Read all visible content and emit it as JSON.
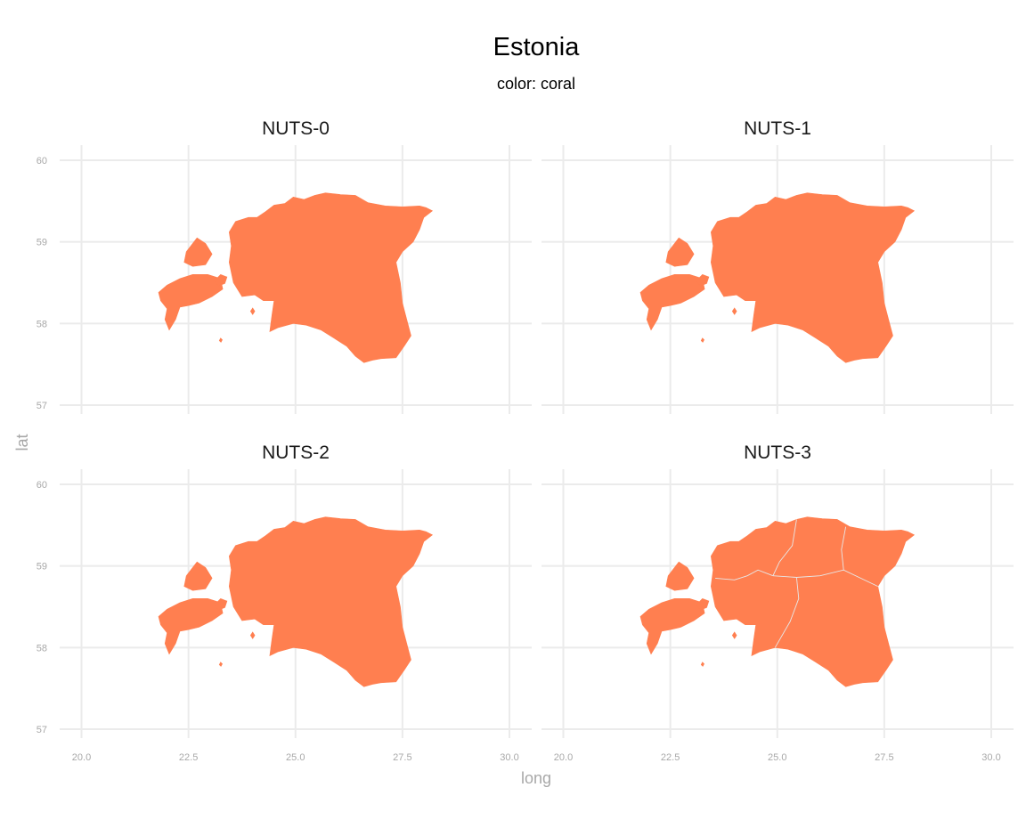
{
  "title": "Estonia",
  "subtitle": "color: coral",
  "fill_color": "#ff7f50",
  "border_color": "#e8e8e8",
  "x_axis": {
    "label": "long",
    "ticks": [
      "20.0",
      "22.5",
      "25.0",
      "27.5",
      "30.0"
    ]
  },
  "y_axis": {
    "label": "lat",
    "ticks": [
      "57",
      "58",
      "59",
      "60"
    ]
  },
  "panels": [
    {
      "label": "NUTS-0"
    },
    {
      "label": "NUTS-1"
    },
    {
      "label": "NUTS-2"
    },
    {
      "label": "NUTS-3"
    }
  ],
  "chart_data": {
    "type": "map",
    "region": "Estonia",
    "facets": [
      "NUTS-0",
      "NUTS-1",
      "NUTS-2",
      "NUTS-3"
    ],
    "xlim": [
      20.0,
      30.0
    ],
    "ylim": [
      57,
      60
    ],
    "x_ticks": [
      20.0,
      22.5,
      25.0,
      27.5,
      30.0
    ],
    "y_ticks": [
      57,
      58,
      59,
      60
    ],
    "nuts3_region_count": 5,
    "fill": "#ff7f50",
    "grid": true,
    "legend": "none"
  }
}
